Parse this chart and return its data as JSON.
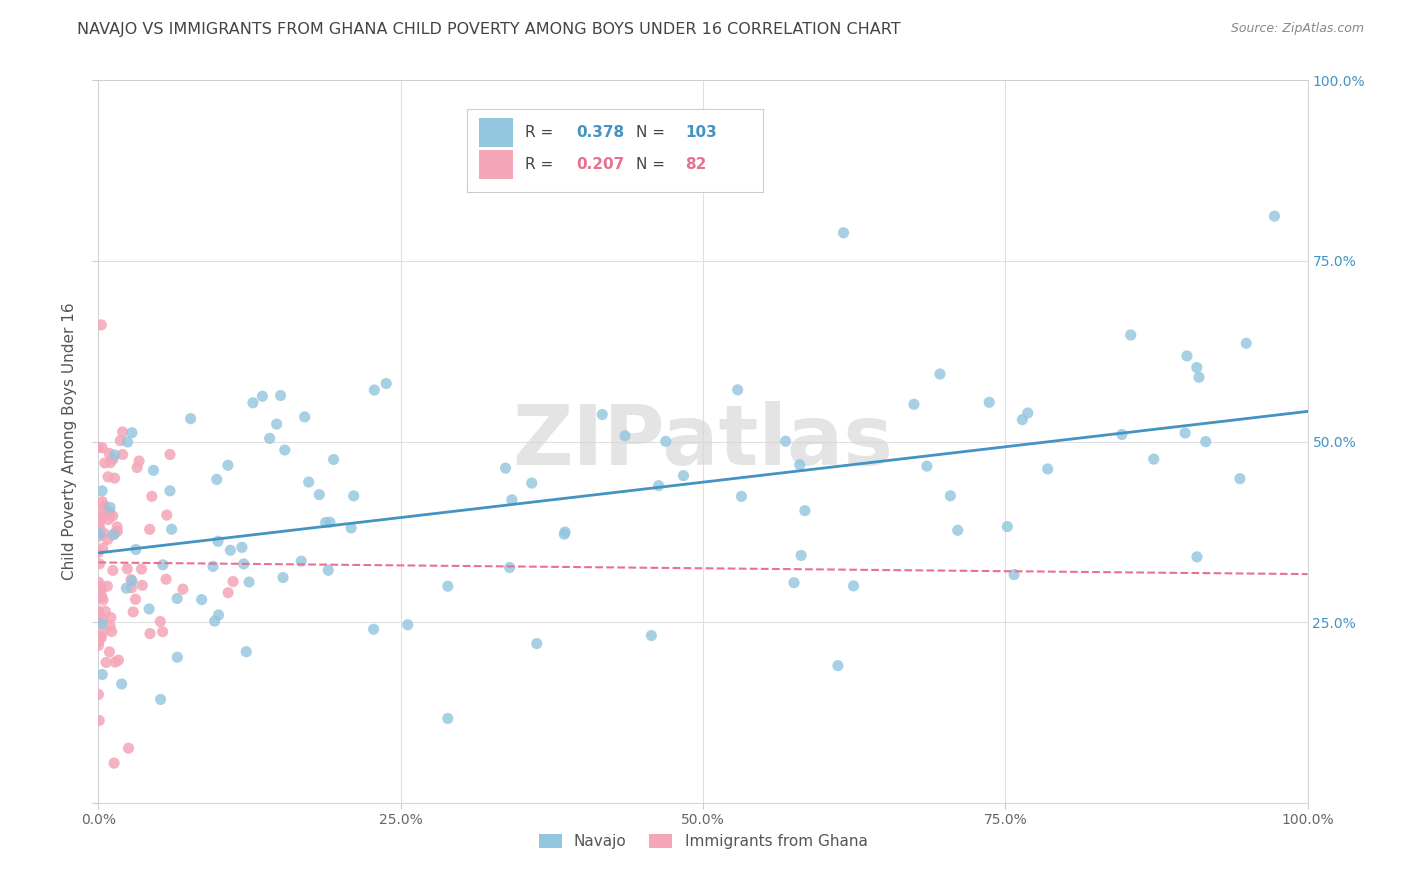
{
  "title": "NAVAJO VS IMMIGRANTS FROM GHANA CHILD POVERTY AMONG BOYS UNDER 16 CORRELATION CHART",
  "source": "Source: ZipAtlas.com",
  "ylabel": "Child Poverty Among Boys Under 16",
  "watermark": "ZIPatlas",
  "navajo_R": 0.378,
  "navajo_N": 103,
  "ghana_R": 0.207,
  "ghana_N": 82,
  "navajo_color": "#92c5de",
  "ghana_color": "#f4a6b8",
  "navajo_line_color": "#4393c3",
  "ghana_line_color": "#e87090",
  "background_color": "#ffffff",
  "title_color": "#444444",
  "grid_color": "#e0e0e0",
  "right_tick_color": "#4393c3",
  "xlim": [
    0.0,
    1.0
  ],
  "ylim": [
    0.0,
    1.0
  ],
  "xtick_pos": [
    0.0,
    0.25,
    0.5,
    0.75,
    1.0
  ],
  "xticklabels": [
    "0.0%",
    "25.0%",
    "50.0%",
    "75.0%",
    "100.0%"
  ],
  "ytick_pos": [
    0.0,
    0.25,
    0.5,
    0.75,
    1.0
  ],
  "yticklabels_right": [
    "",
    "25.0%",
    "50.0%",
    "75.0%",
    "100.0%"
  ]
}
